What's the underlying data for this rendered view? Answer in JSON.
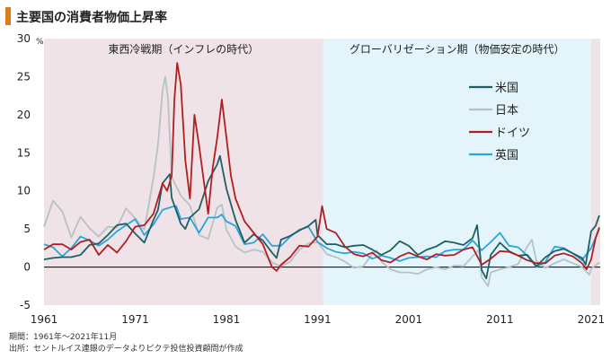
{
  "title": "主要国の消費者物価上昇率",
  "source": {
    "period": "期間：1961年～2021年11月",
    "origin": "出所：セントルイス連銀のデータよりピクテ投信投資顧問が作成"
  },
  "chart_data": {
    "type": "line",
    "ylabel": "%",
    "ylim": [
      -5,
      30
    ],
    "yticks": [
      30,
      25,
      20,
      15,
      10,
      5,
      0,
      -5
    ],
    "xlim": [
      1961,
      2022
    ],
    "xticks": [
      1961,
      1971,
      1981,
      1991,
      2001,
      2011,
      2021
    ],
    "legend_position": "right",
    "periods": [
      {
        "label": "東西冷戦期（インフレの時代）",
        "start": 1961,
        "end": 1991.6,
        "color": "#efe3e8"
      },
      {
        "label": "グローバリゼーション期（物価安定の時代）",
        "start": 1991.6,
        "end": 2021,
        "color": "#e3f5fa"
      },
      {
        "label": "",
        "start": 2021,
        "end": 2022,
        "color": "#efe3e8"
      }
    ],
    "series": [
      {
        "name": "米国",
        "color": "#1f5f63",
        "x": [
          1961,
          1962,
          1963,
          1964,
          1965,
          1966,
          1967,
          1968,
          1969,
          1970,
          1971,
          1972,
          1973,
          1973.5,
          1974,
          1974.8,
          1975,
          1976,
          1976.5,
          1977,
          1978,
          1979,
          1980,
          1980.3,
          1981,
          1982,
          1983,
          1984,
          1985,
          1986,
          1986.5,
          1987,
          1988,
          1989,
          1990,
          1990.8,
          1991,
          1992,
          1993,
          1994,
          1995,
          1996,
          1997,
          1998,
          1999,
          2000,
          2001,
          2002,
          2003,
          2004,
          2005,
          2006,
          2007,
          2008,
          2008.5,
          2009,
          2009.5,
          2010,
          2011,
          2012,
          2013,
          2014,
          2015,
          2016,
          2017,
          2018,
          2019,
          2020,
          2020.4,
          2021,
          2021.5,
          2021.9
        ],
        "values": [
          1.0,
          1.2,
          1.3,
          1.3,
          1.6,
          2.9,
          3.1,
          4.2,
          5.5,
          5.7,
          4.4,
          3.2,
          6.2,
          7.5,
          11.0,
          12.2,
          9.1,
          5.7,
          5.0,
          6.5,
          7.6,
          11.3,
          13.5,
          14.6,
          10.3,
          6.2,
          3.2,
          4.3,
          3.5,
          1.9,
          1.2,
          3.6,
          4.1,
          4.8,
          5.4,
          6.2,
          4.2,
          3.0,
          3.0,
          2.6,
          2.8,
          2.9,
          2.3,
          1.6,
          2.2,
          3.4,
          2.8,
          1.6,
          2.3,
          2.7,
          3.4,
          3.2,
          2.9,
          3.8,
          5.5,
          -0.4,
          -1.5,
          1.6,
          3.2,
          2.1,
          1.5,
          1.6,
          0.1,
          1.3,
          2.1,
          2.4,
          1.8,
          1.2,
          0.3,
          4.7,
          5.4,
          6.8
        ]
      },
      {
        "name": "日本",
        "color": "#b6c2c6",
        "x": [
          1961,
          1962,
          1963,
          1964,
          1965,
          1966,
          1967,
          1968,
          1969,
          1970,
          1971,
          1972,
          1973,
          1973.5,
          1974,
          1974.3,
          1974.6,
          1975,
          1976,
          1977,
          1978,
          1979,
          1980,
          1980.5,
          1981,
          1982,
          1983,
          1984,
          1985,
          1986,
          1987,
          1988,
          1989,
          1990,
          1991,
          1992,
          1993,
          1994,
          1995,
          1996,
          1997,
          1997.5,
          1998,
          1999,
          2000,
          2001,
          2002,
          2003,
          2004,
          2005,
          2006,
          2007,
          2008,
          2008.7,
          2009,
          2009.7,
          2010,
          2011,
          2012,
          2013,
          2014,
          2014.5,
          2015,
          2016,
          2017,
          2018,
          2019,
          2020,
          2020.8,
          2021,
          2021.9
        ],
        "values": [
          5.3,
          8.7,
          7.3,
          3.9,
          6.6,
          5.1,
          4.0,
          5.3,
          5.2,
          7.7,
          6.4,
          4.9,
          11.7,
          16.0,
          23.2,
          25.0,
          22.0,
          11.8,
          9.4,
          8.1,
          4.2,
          3.7,
          7.8,
          8.2,
          4.9,
          2.7,
          1.9,
          2.3,
          2.0,
          0.6,
          0.1,
          0.7,
          2.3,
          3.1,
          3.3,
          1.7,
          1.3,
          0.7,
          -0.1,
          0.1,
          1.7,
          2.2,
          0.7,
          -0.3,
          -0.7,
          -0.7,
          -0.9,
          -0.3,
          0.0,
          -0.3,
          0.2,
          0.1,
          1.4,
          2.3,
          -1.3,
          -2.5,
          -0.7,
          -0.3,
          0.0,
          0.4,
          2.7,
          3.6,
          0.8,
          -0.1,
          0.5,
          1.0,
          0.5,
          0.0,
          -1.0,
          -0.2,
          0.6
        ]
      },
      {
        "name": "ドイツ",
        "color": "#b01e22",
        "x": [
          1961,
          1962,
          1963,
          1964,
          1965,
          1966,
          1967,
          1968,
          1969,
          1970,
          1971,
          1972,
          1973,
          1974,
          1974.5,
          1975,
          1975.3,
          1975.6,
          1976,
          1976.5,
          1977,
          1977.5,
          1978,
          1979,
          1979.5,
          1980,
          1980.5,
          1981,
          1981.5,
          1982,
          1983,
          1984,
          1985,
          1986,
          1986.5,
          1987,
          1988,
          1989,
          1990,
          1991,
          1991.5,
          1992,
          1993,
          1994,
          1995,
          1996,
          1997,
          1998,
          1999,
          2000,
          2001,
          2002,
          2003,
          2004,
          2005,
          2006,
          2007,
          2008,
          2009,
          2010,
          2011,
          2012,
          2013,
          2014,
          2015,
          2016,
          2017,
          2018,
          2019,
          2020,
          2020.5,
          2021,
          2021.5,
          2021.9
        ],
        "values": [
          2.3,
          3.0,
          3.0,
          2.3,
          3.3,
          3.6,
          1.6,
          2.9,
          1.9,
          3.4,
          5.3,
          5.5,
          7.0,
          11.0,
          10.0,
          12.0,
          22.0,
          26.8,
          24.0,
          14.0,
          9.0,
          20.0,
          16.0,
          7.0,
          13.0,
          17.0,
          22.0,
          17.0,
          12.0,
          9.0,
          6.0,
          4.5,
          3.0,
          0.0,
          -0.5,
          0.3,
          1.3,
          2.8,
          2.7,
          4.0,
          8.0,
          5.0,
          4.5,
          2.7,
          1.7,
          1.4,
          1.9,
          0.9,
          0.6,
          1.4,
          1.9,
          1.4,
          1.0,
          1.7,
          1.5,
          1.6,
          2.3,
          2.6,
          0.3,
          1.1,
          2.1,
          2.0,
          1.5,
          0.9,
          0.5,
          0.5,
          1.5,
          1.8,
          1.4,
          0.5,
          -0.3,
          1.0,
          3.8,
          5.2
        ]
      },
      {
        "name": "英国",
        "color": "#2ba4dc",
        "x": [
          1961,
          1962,
          1963,
          1964,
          1965,
          1966,
          1967,
          1968,
          1969,
          1970,
          1971,
          1972,
          1973,
          1974,
          1975,
          1975.5,
          1976,
          1977,
          1978,
          1979,
          1980,
          1980.5,
          1981,
          1982,
          1983,
          1984,
          1985,
          1986,
          1987,
          1988,
          1989,
          1990,
          1991,
          1992,
          1993,
          1994,
          1995,
          1996,
          1997,
          1998,
          1999,
          2000,
          2001,
          2002,
          2003,
          2004,
          2005,
          2006,
          2007,
          2008,
          2009,
          2010,
          2011,
          2012,
          2013,
          2014,
          2015,
          2016,
          2017,
          2018,
          2019,
          2020,
          2021,
          2021.9
        ],
        "values": [
          3.0,
          2.6,
          1.4,
          2.5,
          4.0,
          3.5,
          2.8,
          3.6,
          4.7,
          5.5,
          6.3,
          4.2,
          5.6,
          7.5,
          7.9,
          8.0,
          6.3,
          6.5,
          4.5,
          6.5,
          6.5,
          6.9,
          6.0,
          5.4,
          3.0,
          3.2,
          4.3,
          2.8,
          2.8,
          4.0,
          4.9,
          5.3,
          3.3,
          2.5,
          2.0,
          1.8,
          2.0,
          1.8,
          1.1,
          1.5,
          1.2,
          0.8,
          1.2,
          1.3,
          1.4,
          1.3,
          2.1,
          2.3,
          2.3,
          3.5,
          2.2,
          3.3,
          4.5,
          2.8,
          2.6,
          1.5,
          0.0,
          0.7,
          2.7,
          2.5,
          1.8,
          0.9,
          2.5,
          5.0
        ]
      }
    ]
  }
}
